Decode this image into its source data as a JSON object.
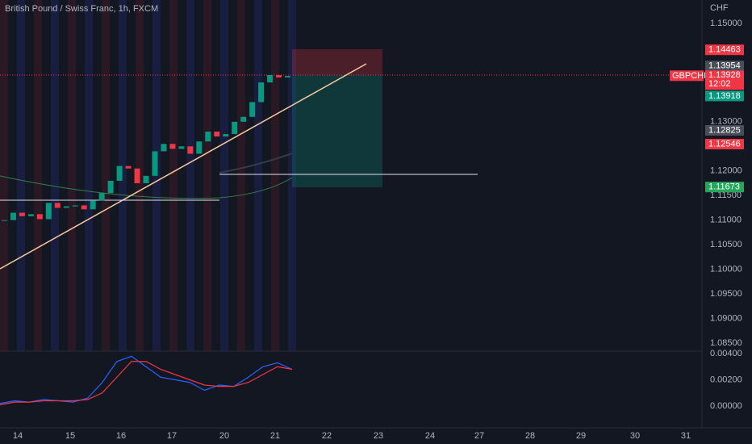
{
  "header": {
    "title": "British Pound / Swiss Franc, 1h, FXCM"
  },
  "price_axis": {
    "unit": "CHF",
    "ticks": [
      {
        "value": 1.15,
        "label": "1.15000"
      },
      {
        "value": 1.13,
        "label": "1.13000"
      },
      {
        "value": 1.12,
        "label": "1.12000"
      },
      {
        "value": 1.115,
        "label": "1.11500"
      },
      {
        "value": 1.11,
        "label": "1.11000"
      },
      {
        "value": 1.105,
        "label": "1.10500"
      },
      {
        "value": 1.1,
        "label": "1.10000"
      },
      {
        "value": 1.095,
        "label": "1.09500"
      },
      {
        "value": 1.09,
        "label": "1.09000"
      },
      {
        "value": 1.085,
        "label": "1.08500"
      }
    ],
    "badges": [
      {
        "value": 1.14463,
        "label": "1.14463",
        "color": "#f23645"
      },
      {
        "value": 1.13954,
        "label": "1.13954",
        "color": "#4a4e59"
      },
      {
        "value": 1.13918,
        "label": "1.13918",
        "color": "#089981"
      },
      {
        "value": 1.12825,
        "label": "1.12825",
        "color": "#4a4e59"
      },
      {
        "value": 1.12546,
        "label": "1.12546",
        "color": "#f23645"
      },
      {
        "value": 1.11673,
        "label": "1.11673",
        "color": "#26a65b"
      }
    ],
    "last": {
      "symbol": "GBPCHF",
      "value": 1.13928,
      "label": "1.13928",
      "countdown": "12:02",
      "color": "#f23645"
    }
  },
  "price": {
    "closes": [
      1.11,
      1.1115,
      1.1108,
      1.1112,
      1.1102,
      1.1135,
      1.1125,
      1.1128,
      1.113,
      1.1122,
      1.114,
      1.1155,
      1.118,
      1.121,
      1.1205,
      1.1175,
      1.119,
      1.124,
      1.1255,
      1.1245,
      1.125,
      1.1235,
      1.126,
      1.128,
      1.127,
      1.1275,
      1.13,
      1.131,
      1.134,
      1.138,
      1.1395,
      1.139,
      1.1393
    ]
  },
  "indicator": {
    "ticks": [
      {
        "value": 0.004,
        "label": "0.00400"
      },
      {
        "value": 0.002,
        "label": "0.00200"
      },
      {
        "value": 0,
        "label": "0.00000"
      }
    ],
    "macd": [
      0.0002,
      0.0004,
      0.0003,
      0.0005,
      0.0004,
      0.0003,
      0.0006,
      0.0018,
      0.0034,
      0.0038,
      0.003,
      0.0022,
      0.002,
      0.0018,
      0.0012,
      0.0016,
      0.0015,
      0.0022,
      0.003,
      0.0033,
      0.0028
    ],
    "signal": [
      0.0001,
      0.0003,
      0.0003,
      0.0004,
      0.0004,
      0.0004,
      0.0005,
      0.001,
      0.0022,
      0.0034,
      0.0034,
      0.0028,
      0.0024,
      0.002,
      0.0016,
      0.0015,
      0.0015,
      0.0018,
      0.0024,
      0.003,
      0.0028
    ]
  },
  "time_axis": {
    "labels": [
      "14",
      "15",
      "16",
      "17",
      "20",
      "21",
      "22",
      "23",
      "24",
      "27",
      "28",
      "29",
      "30",
      "31"
    ]
  }
}
